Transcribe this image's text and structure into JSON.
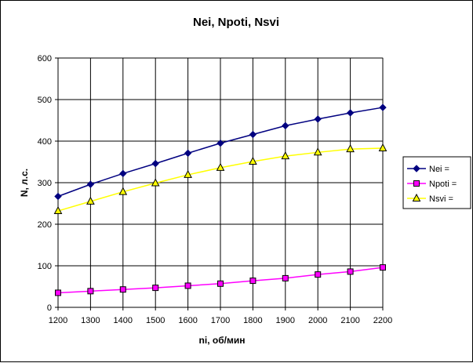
{
  "chart_data": {
    "type": "line",
    "title": "Nei, Npoti, Nsvi",
    "xlabel": "ni, об/мин",
    "ylabel": "N, л.с.",
    "x": [
      1200,
      1300,
      1400,
      1500,
      1600,
      1700,
      1800,
      1900,
      2000,
      2100,
      2200
    ],
    "xlim": [
      1200,
      2200
    ],
    "ylim": [
      0,
      600
    ],
    "yticks": [
      0,
      100,
      200,
      300,
      400,
      500,
      600
    ],
    "grid": true,
    "legend_position": "right",
    "series": [
      {
        "name": "Nei =",
        "color": "#000080",
        "marker": "diamond",
        "values": [
          267,
          296,
          322,
          346,
          371,
          395,
          416,
          437,
          453,
          468,
          481
        ]
      },
      {
        "name": "Npoti =",
        "color": "#FF00FF",
        "marker": "square",
        "values": [
          35,
          39,
          43,
          47,
          52,
          57,
          64,
          70,
          79,
          86,
          96
        ]
      },
      {
        "name": "Nsvi =",
        "color": "#FFFF00",
        "marker": "triangle",
        "values": [
          232,
          255,
          278,
          299,
          319,
          336,
          351,
          364,
          373,
          381,
          383
        ]
      }
    ]
  }
}
